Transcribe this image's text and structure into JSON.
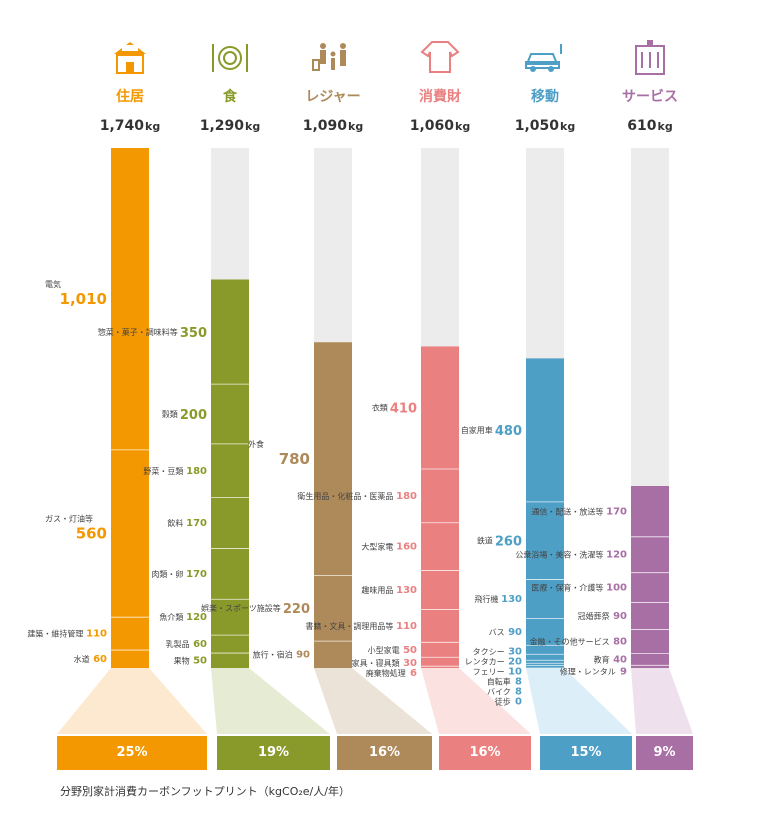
{
  "chart_data": {
    "type": "bar",
    "title": "",
    "caption": "分野別家計消費カーボンフットプリント（kgCO₂e/人/年）",
    "ylim": [
      0,
      1740
    ],
    "categories": [
      {
        "label": "住居",
        "total": 1740,
        "total_text": "1,740",
        "unit": "kg",
        "percent": "25%",
        "color": "#f39800",
        "light": "#fde9cf",
        "icon": "house-solar-icon",
        "items": [
          {
            "name": "電気",
            "value": 1010,
            "text": "1,010",
            "big": true
          },
          {
            "name": "ガス・灯油等",
            "value": 560,
            "text": "560",
            "big": true
          },
          {
            "name": "建築・維持管理",
            "value": 110,
            "text": "110"
          },
          {
            "name": "水道",
            "value": 60,
            "text": "60"
          }
        ]
      },
      {
        "label": "食",
        "total": 1290,
        "total_text": "1,290",
        "unit": "kg",
        "percent": "19%",
        "color": "#8a9a2a",
        "light": "#e6ecd4",
        "icon": "plate-cutlery-icon",
        "items": [
          {
            "name": "惣菜・菓子・調味料等",
            "value": 350,
            "text": "350",
            "big": true
          },
          {
            "name": "穀類",
            "value": 200,
            "text": "200",
            "big": true
          },
          {
            "name": "野菜・豆類",
            "value": 180,
            "text": "180"
          },
          {
            "name": "飲料",
            "value": 170,
            "text": "170"
          },
          {
            "name": "肉類・卵",
            "value": 170,
            "text": "170"
          },
          {
            "name": "魚介類",
            "value": 120,
            "text": "120"
          },
          {
            "name": "乳製品",
            "value": 60,
            "text": "60"
          },
          {
            "name": "果物",
            "value": 50,
            "text": "50"
          }
        ]
      },
      {
        "label": "レジャー",
        "total": 1090,
        "total_text": "1,090",
        "unit": "kg",
        "percent": "16%",
        "color": "#ae8a5a",
        "light": "#ebe3d8",
        "icon": "family-travel-icon",
        "items": [
          {
            "name": "外食",
            "value": 780,
            "text": "780",
            "big": true
          },
          {
            "name": "娯楽・スポーツ施設等",
            "value": 220,
            "text": "220",
            "big": true
          },
          {
            "name": "旅行・宿泊",
            "value": 90,
            "text": "90"
          }
        ]
      },
      {
        "label": "消費財",
        "total": 1060,
        "total_text": "1,060",
        "unit": "kg",
        "percent": "16%",
        "color": "#ea8080",
        "light": "#fbe2e1",
        "icon": "sweater-icon",
        "items": [
          {
            "name": "衣類",
            "value": 410,
            "text": "410",
            "big": true
          },
          {
            "name": "衛生用品・化粧品・医薬品",
            "value": 180,
            "text": "180"
          },
          {
            "name": "大型家電",
            "value": 160,
            "text": "160"
          },
          {
            "name": "趣味用品",
            "value": 130,
            "text": "130"
          },
          {
            "name": "書籍・文具・調理用品等",
            "value": 110,
            "text": "110"
          },
          {
            "name": "小型家電",
            "value": 50,
            "text": "50"
          },
          {
            "name": "家具・寝具類",
            "value": 30,
            "text": "30"
          },
          {
            "name": "廃棄物処理",
            "value": 6,
            "text": "6"
          }
        ]
      },
      {
        "label": "移動",
        "total": 1050,
        "total_text": "1,050",
        "unit": "kg",
        "percent": "15%",
        "color": "#4e9fc6",
        "light": "#dceef8",
        "icon": "electric-car-icon",
        "items": [
          {
            "name": "自家用車",
            "value": 480,
            "text": "480",
            "big": true
          },
          {
            "name": "鉄道",
            "value": 260,
            "text": "260",
            "big": true
          },
          {
            "name": "飛行機",
            "value": 130,
            "text": "130"
          },
          {
            "name": "バス",
            "value": 90,
            "text": "90"
          },
          {
            "name": "タクシー",
            "value": 30,
            "text": "30"
          },
          {
            "name": "レンタカー",
            "value": 20,
            "text": "20"
          },
          {
            "name": "フェリー",
            "value": 10,
            "text": "10"
          },
          {
            "name": "自転車",
            "value": 8,
            "text": "8"
          },
          {
            "name": "バイク",
            "value": 8,
            "text": "8"
          },
          {
            "name": "徒歩",
            "value": 0,
            "text": "0"
          }
        ]
      },
      {
        "label": "サービス",
        "total": 610,
        "total_text": "610",
        "unit": "kg",
        "percent": "9%",
        "color": "#a86fa5",
        "light": "#efe0ee",
        "icon": "building-icon",
        "items": [
          {
            "name": "通信・配送・放送等",
            "value": 170,
            "text": "170"
          },
          {
            "name": "公衆浴場・美容・洗濯等",
            "value": 120,
            "text": "120"
          },
          {
            "name": "医療・保育・介護等",
            "value": 100,
            "text": "100"
          },
          {
            "name": "冠婚葬祭",
            "value": 90,
            "text": "90"
          },
          {
            "name": "金融・その他サービス",
            "value": 80,
            "text": "80"
          },
          {
            "name": "教育",
            "value": 40,
            "text": "40"
          },
          {
            "name": "修理・レンタル",
            "value": 9,
            "text": "9"
          }
        ]
      }
    ]
  }
}
